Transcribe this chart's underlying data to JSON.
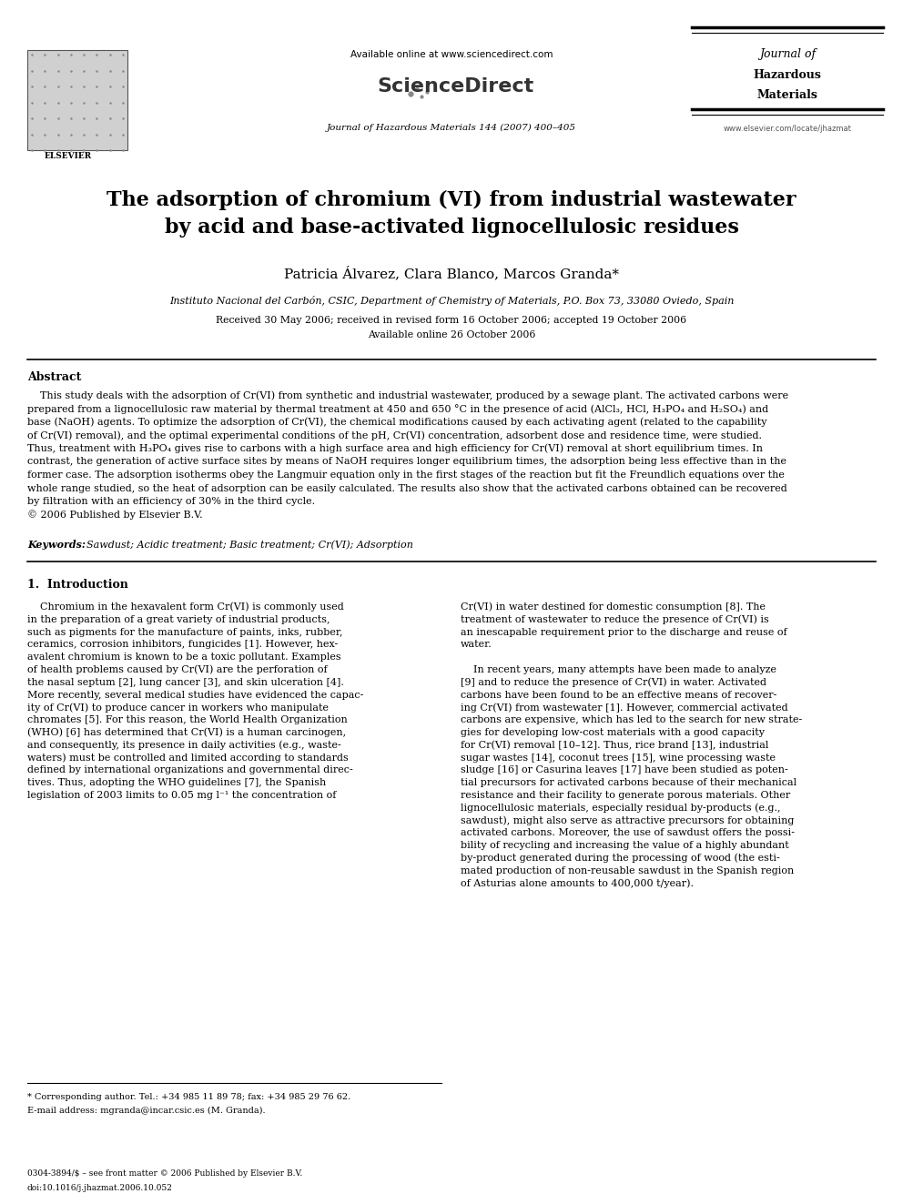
{
  "page_width": 9.92,
  "page_height": 13.23,
  "bg_color": "#ffffff",
  "header_avail": "Available online at www.sciencedirect.com",
  "header_scidir": "ScienceDirect",
  "header_journal_info": "Journal of Hazardous Materials 144 (2007) 400–405",
  "journal_name_line1": "Journal of",
  "journal_name_line2": "Hazardous",
  "journal_name_line3": "Materials",
  "journal_url": "www.elsevier.com/locate/jhazmat",
  "title_line1": "The adsorption of chromium (VI) from industrial wastewater",
  "title_line2": "by acid and base-activated lignocellulosic residues",
  "authors": "Patricia Álvarez, Clara Blanco, Marcos Granda*",
  "affiliation": "Instituto Nacional del Carbón, CSIC, Department of Chemistry of Materials, P.O. Box 73, 33080 Oviedo, Spain",
  "received": "Received 30 May 2006; received in revised form 16 October 2006; accepted 19 October 2006",
  "available_online_date": "Available online 26 October 2006",
  "abstract_label": "Abstract",
  "abstract_lines": [
    "    This study deals with the adsorption of Cr(VI) from synthetic and industrial wastewater, produced by a sewage plant. The activated carbons were",
    "prepared from a lignocellulosic raw material by thermal treatment at 450 and 650 °C in the presence of acid (AlCl₃, HCl, H₃PO₄ and H₂SO₄) and",
    "base (NaOH) agents. To optimize the adsorption of Cr(VI), the chemical modifications caused by each activating agent (related to the capability",
    "of Cr(VI) removal), and the optimal experimental conditions of the pH, Cr(VI) concentration, adsorbent dose and residence time, were studied.",
    "Thus, treatment with H₃PO₄ gives rise to carbons with a high surface area and high efficiency for Cr(VI) removal at short equilibrium times. In",
    "contrast, the generation of active surface sites by means of NaOH requires longer equilibrium times, the adsorption being less effective than in the",
    "former case. The adsorption isotherms obey the Langmuir equation only in the first stages of the reaction but fit the Freundlich equations over the",
    "whole range studied, so the heat of adsorption can be easily calculated. The results also show that the activated carbons obtained can be recovered",
    "by filtration with an efficiency of 30% in the third cycle.",
    "© 2006 Published by Elsevier B.V."
  ],
  "keywords_label": "Keywords:",
  "keywords_text": "  Sawdust; Acidic treatment; Basic treatment; Cr(VI); Adsorption",
  "section1_label": "1.  Introduction",
  "col1_lines": [
    "    Chromium in the hexavalent form Cr(VI) is commonly used",
    "in the preparation of a great variety of industrial products,",
    "such as pigments for the manufacture of paints, inks, rubber,",
    "ceramics, corrosion inhibitors, fungicides [1]. However, hex-",
    "avalent chromium is known to be a toxic pollutant. Examples",
    "of health problems caused by Cr(VI) are the perforation of",
    "the nasal septum [2], lung cancer [3], and skin ulceration [4].",
    "More recently, several medical studies have evidenced the capac-",
    "ity of Cr(VI) to produce cancer in workers who manipulate",
    "chromates [5]. For this reason, the World Health Organization",
    "(WHO) [6] has determined that Cr(VI) is a human carcinogen,",
    "and consequently, its presence in daily activities (e.g., waste-",
    "waters) must be controlled and limited according to standards",
    "defined by international organizations and governmental direc-",
    "tives. Thus, adopting the WHO guidelines [7], the Spanish",
    "legislation of 2003 limits to 0.05 mg l⁻¹ the concentration of"
  ],
  "col2_lines": [
    "Cr(VI) in water destined for domestic consumption [8]. The",
    "treatment of wastewater to reduce the presence of Cr(VI) is",
    "an inescapable requirement prior to the discharge and reuse of",
    "water.",
    "",
    "    In recent years, many attempts have been made to analyze",
    "[9] and to reduce the presence of Cr(VI) in water. Activated",
    "carbons have been found to be an effective means of recover-",
    "ing Cr(VI) from wastewater [1]. However, commercial activated",
    "carbons are expensive, which has led to the search for new strate-",
    "gies for developing low-cost materials with a good capacity",
    "for Cr(VI) removal [10–12]. Thus, rice brand [13], industrial",
    "sugar wastes [14], coconut trees [15], wine processing waste",
    "sludge [16] or Casurina leaves [17] have been studied as poten-",
    "tial precursors for activated carbons because of their mechanical",
    "resistance and their facility to generate porous materials. Other",
    "lignocellulosic materials, especially residual by-products (e.g.,",
    "sawdust), might also serve as attractive precursors for obtaining",
    "activated carbons. Moreover, the use of sawdust offers the possi-",
    "bility of recycling and increasing the value of a highly abundant",
    "by-product generated during the processing of wood (the esti-",
    "mated production of non-reusable sawdust in the Spanish region",
    "of Asturias alone amounts to 400,000 t/year)."
  ],
  "footnote_line": "* Corresponding author. Tel.: +34 985 11 89 78; fax: +34 985 29 76 62.",
  "footnote_email": "E-mail address: mgranda@incar.csic.es (M. Granda).",
  "footer_line1": "0304-3894/$ – see front matter © 2006 Published by Elsevier B.V.",
  "footer_line2": "doi:10.1016/j.jhazmat.2006.10.052"
}
